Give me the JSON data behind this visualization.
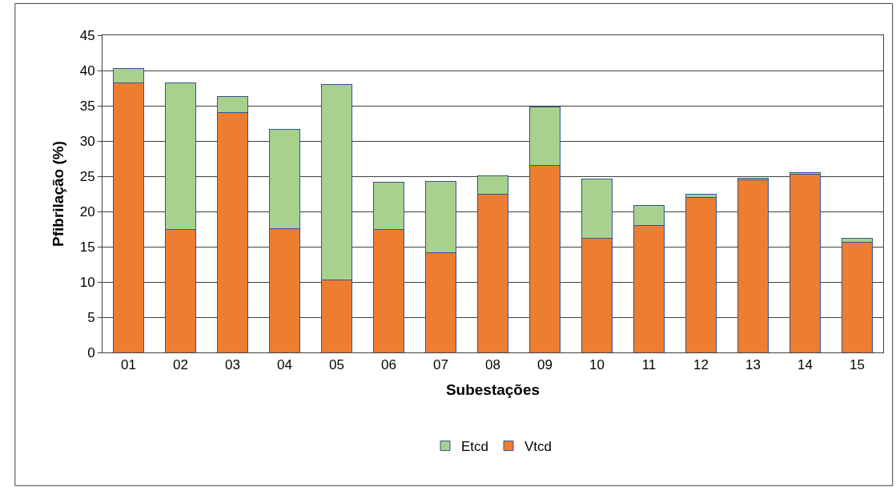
{
  "chart_data": {
    "type": "bar",
    "stacked": true,
    "xlabel": "Subestações",
    "ylabel": "Pfibrilação (%)",
    "categories": [
      "01",
      "02",
      "03",
      "04",
      "05",
      "06",
      "07",
      "08",
      "09",
      "10",
      "11",
      "12",
      "13",
      "14",
      "15"
    ],
    "series": [
      {
        "name": "Vtcd",
        "color": "#ed7d31",
        "values": [
          38.2,
          17.5,
          34.0,
          17.6,
          10.3,
          17.5,
          14.2,
          22.5,
          26.5,
          16.2,
          18.0,
          22.0,
          24.5,
          25.3,
          15.6
        ]
      },
      {
        "name": "Etcd",
        "color": "#a9d18e",
        "values": [
          2.1,
          20.7,
          2.3,
          14.0,
          27.7,
          6.7,
          10.1,
          2.6,
          8.3,
          8.4,
          2.9,
          0.4,
          0.2,
          0.2,
          0.6
        ]
      }
    ],
    "ylim": [
      0,
      45
    ],
    "yticks": [
      0,
      5,
      10,
      15,
      20,
      25,
      30,
      35,
      40,
      45
    ],
    "grid": "y",
    "legend": "bottom"
  }
}
